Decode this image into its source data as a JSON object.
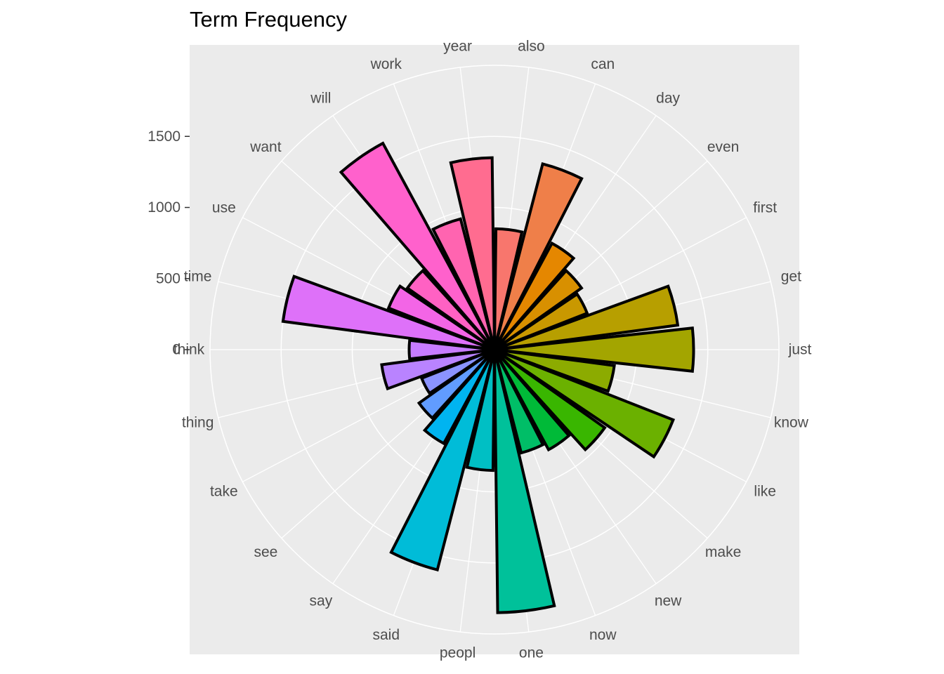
{
  "chart_data": {
    "type": "bar",
    "coord": "polar",
    "title": "Term Frequency",
    "categories": [
      "also",
      "can",
      "day",
      "even",
      "first",
      "get",
      "just",
      "know",
      "like",
      "make",
      "new",
      "now",
      "one",
      "peopl",
      "said",
      "say",
      "see",
      "take",
      "thing",
      "think",
      "time",
      "use",
      "want",
      "will",
      "work",
      "year"
    ],
    "values": [
      850,
      1350,
      850,
      750,
      700,
      1300,
      1400,
      850,
      1350,
      950,
      800,
      750,
      1850,
      850,
      1600,
      750,
      650,
      550,
      800,
      600,
      1500,
      800,
      750,
      1650,
      950,
      1350
    ],
    "colors": [
      "#F8766D",
      "#EF7F49",
      "#E58700",
      "#D89000",
      "#C99800",
      "#B79F00",
      "#A3A500",
      "#8CAB00",
      "#6BB100",
      "#39B600",
      "#00BA38",
      "#00BE67",
      "#00C19A",
      "#00BFC4",
      "#00BCD8",
      "#00B4F0",
      "#619CFF",
      "#8B93FF",
      "#B983FF",
      "#C77CFF",
      "#DE71F9",
      "#F365E6",
      "#FF61C3",
      "#FF61CC",
      "#FF64B0",
      "#FF6C90"
    ],
    "rlim": [
      0,
      2000
    ],
    "yticks": [
      0,
      500,
      1000,
      1500
    ],
    "grid": true,
    "legend": "none"
  }
}
